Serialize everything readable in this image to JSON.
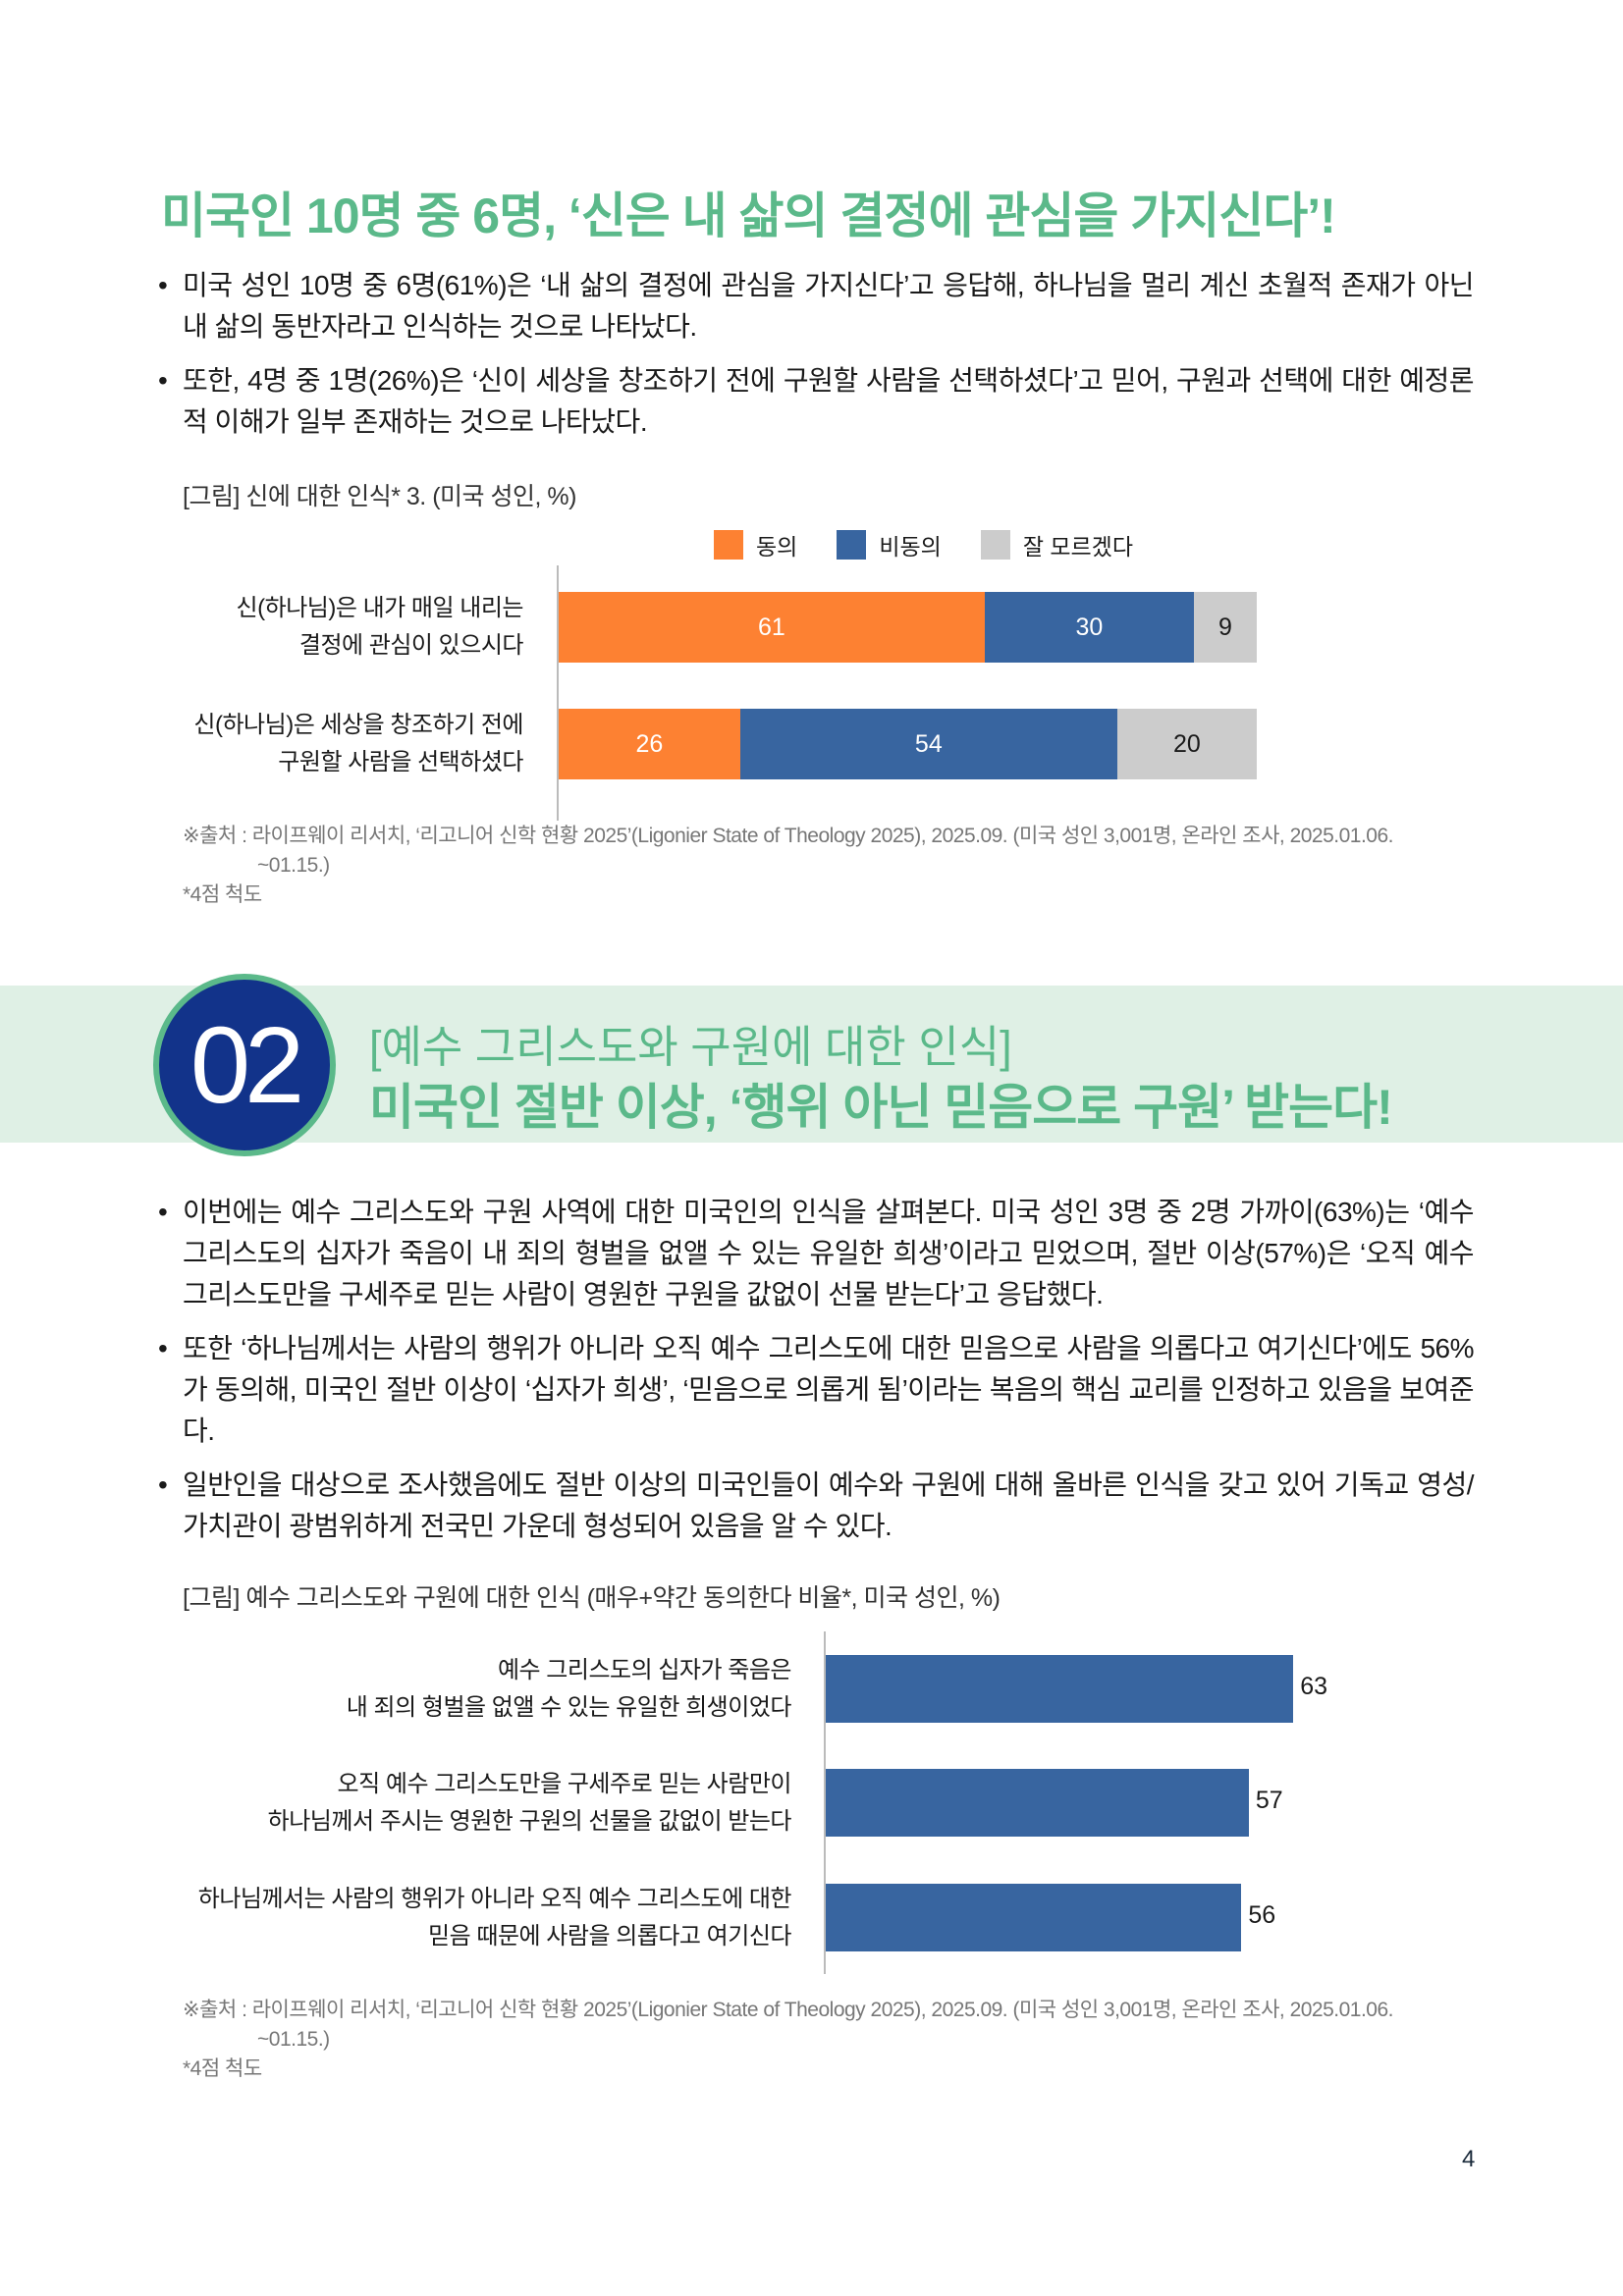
{
  "section1": {
    "title": "미국인 10명 중 6명, ‘신은 내 삶의 결정에 관심을 가지신다’!",
    "bullets": [
      "미국 성인 10명 중 6명(61%)은 ‘내 삶의 결정에 관심을 가지신다’고 응답해, 하나님을 멀리 계신 초월적 존재가 아닌 내 삶의 동반자라고 인식하는 것으로 나타났다.",
      "또한, 4명 중 1명(26%)은 ‘신이 세상을 창조하기 전에 구원할 사람을 선택하셨다’고 믿어, 구원과 선택에 대한 예정론적 이해가 일부 존재하는 것으로 나타났다."
    ],
    "figure_caption": "[그림] 신에 대한 인식* 3. (미국 성인, %)",
    "source": "※출처 : 라이프웨이 리서치, ‘리고니어 신학 현황 2025’(Ligonier State of Theology 2025), 2025.09. (미국 성인 3,001명, 온라인 조사, 2025.01.06.",
    "source_cont": "~01.15.)",
    "footnote": "*4점 척도"
  },
  "section2": {
    "number": "02",
    "subtitle": "[예수 그리스도와 구원에 대한 인식]",
    "title": "미국인 절반 이상, ‘행위 아닌 믿음으로 구원’ 받는다!",
    "bullets": [
      "이번에는 예수 그리스도와 구원 사역에 대한 미국인의 인식을 살펴본다. 미국 성인 3명 중 2명 가까이(63%)는 ‘예수 그리스도의 십자가 죽음이 내 죄의 형벌을 없앨 수 있는 유일한 희생’이라고 믿었으며, 절반 이상(57%)은 ‘오직 예수 그리스도만을 구세주로 믿는 사람이 영원한 구원을 값없이 선물 받는다’고 응답했다.",
      "또한 ‘하나님께서는 사람의 행위가 아니라 오직 예수 그리스도에 대한 믿음으로 사람을 의롭다고 여기신다’에도 56%가 동의해, 미국인 절반 이상이 ‘십자가 희생’, ‘믿음으로 의롭게 됨’이라는 복음의 핵심 교리를 인정하고 있음을 보여준다.",
      "일반인을 대상으로 조사했음에도 절반 이상의 미국인들이 예수와 구원에 대해 올바른 인식을 갖고 있어 기독교 영성/가치관이 광범위하게 전국민 가운데 형성되어 있음을 알 수 있다."
    ],
    "figure_caption": "[그림] 예수 그리스도와 구원에 대한 인식 (매우+약간 동의한다 비율*, 미국 성인, %)",
    "source": "※출처 : 라이프웨이 리서치, ‘리고니어 신학 현황 2025’(Ligonier State of Theology 2025), 2025.09. (미국 성인 3,001명, 온라인 조사, 2025.01.06.",
    "source_cont": "~01.15.)",
    "footnote": "*4점 척도"
  },
  "page_number": "4",
  "colors": {
    "accent_green": "#5bb98a",
    "band": "#dff0e5",
    "circle_navy": "#12338a"
  },
  "chart_data": [
    {
      "type": "bar",
      "orientation": "horizontal",
      "stacked": true,
      "categories": [
        [
          "신(하나님)은 내가 매일 내리는",
          "결정에 관심이 있으시다"
        ],
        [
          "신(하나님)은 세상을 창조하기 전에",
          "구원할 사람을 선택하셨다"
        ]
      ],
      "series": [
        {
          "name": "동의",
          "color": "#fd8132",
          "label_color": "#ffffff",
          "values": [
            61,
            26
          ]
        },
        {
          "name": "비동의",
          "color": "#3865a0",
          "label_color": "#ffffff",
          "values": [
            30,
            54
          ]
        },
        {
          "name": "잘 모르겠다",
          "color": "#cccccc",
          "label_color": "#1a1a1a",
          "values": [
            9,
            20
          ]
        }
      ],
      "xlim": [
        0,
        100
      ],
      "legend": "top",
      "grid": false
    },
    {
      "type": "bar",
      "orientation": "horizontal",
      "categories": [
        [
          "예수 그리스도의 십자가 죽음은",
          "내 죄의 형벌을 없앨 수 있는 유일한 희생이었다"
        ],
        [
          "오직 예수 그리스도만을 구세주로 믿는 사람만이",
          "하나님께서 주시는 영원한 구원의 선물을 값없이 받는다"
        ],
        [
          "하나님께서는 사람의 행위가 아니라 오직 예수 그리스도에 대한",
          "믿음 때문에 사람을 의롭다고 여기신다"
        ]
      ],
      "values": [
        63,
        57,
        56
      ],
      "color": "#3865a0",
      "xlim": [
        0,
        100
      ],
      "grid": false
    }
  ]
}
